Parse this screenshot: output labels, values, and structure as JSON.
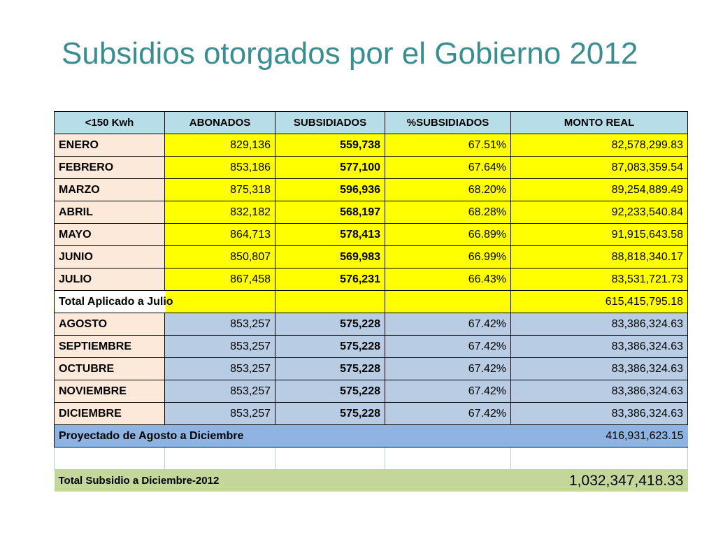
{
  "title": "Subsidios otorgados por el Gobierno 2012",
  "headers": [
    "<150 Kwh",
    "ABONADOS",
    "SUBSIDIADOS",
    "%SUBSIDIADOS",
    "MONTO REAL"
  ],
  "rows_actual": [
    {
      "month": "ENERO",
      "abonados": "829,136",
      "subsidiados": "559,738",
      "pct": "67.51%",
      "monto": "82,578,299.83"
    },
    {
      "month": "FEBRERO",
      "abonados": "853,186",
      "subsidiados": "577,100",
      "pct": "67.64%",
      "monto": "87,083,359.54"
    },
    {
      "month": "MARZO",
      "abonados": "875,318",
      "subsidiados": "596,936",
      "pct": "68.20%",
      "monto": "89,254,889.49"
    },
    {
      "month": "ABRIL",
      "abonados": "832,182",
      "subsidiados": "568,197",
      "pct": "68.28%",
      "monto": "92,233,540.84"
    },
    {
      "month": "MAYO",
      "abonados": "864,713",
      "subsidiados": "578,413",
      "pct": "66.89%",
      "monto": "91,915,643.58"
    },
    {
      "month": "JUNIO",
      "abonados": "850,807",
      "subsidiados": "569,983",
      "pct": "66.99%",
      "monto": "88,818,340.17"
    },
    {
      "month": "JULIO",
      "abonados": "867,458",
      "subsidiados": "576,231",
      "pct": "66.43%",
      "monto": "83,531,721.73"
    }
  ],
  "total_aplicado": {
    "label": "Total Aplicado a Julio",
    "monto": "615,415,795.18"
  },
  "rows_projected": [
    {
      "month": "AGOSTO",
      "abonados": "853,257",
      "subsidiados": "575,228",
      "pct": "67.42%",
      "monto": "83,386,324.63"
    },
    {
      "month": "SEPTIEMBRE",
      "abonados": "853,257",
      "subsidiados": "575,228",
      "pct": "67.42%",
      "monto": "83,386,324.63"
    },
    {
      "month": "OCTUBRE",
      "abonados": "853,257",
      "subsidiados": "575,228",
      "pct": "67.42%",
      "monto": "83,386,324.63"
    },
    {
      "month": "NOVIEMBRE",
      "abonados": "853,257",
      "subsidiados": "575,228",
      "pct": "67.42%",
      "monto": "83,386,324.63"
    },
    {
      "month": "DICIEMBRE",
      "abonados": "853,257",
      "subsidiados": "575,228",
      "pct": "67.42%",
      "monto": "83,386,324.63"
    }
  ],
  "proyectado": {
    "label": "Proyectado de Agosto a Diciembre",
    "monto": "416,931,623.15"
  },
  "grand_total": {
    "label": "Total Subsidio a Diciembre-2012",
    "monto": "1,032,347,418.33"
  },
  "colors": {
    "title": "#3b8e90",
    "header": "#b7dde8",
    "month": "#fde9d9",
    "actual": "#ffff00",
    "projected": "#b8cce4",
    "proyectado": "#8eb4e3",
    "total": "#c4d79b"
  }
}
